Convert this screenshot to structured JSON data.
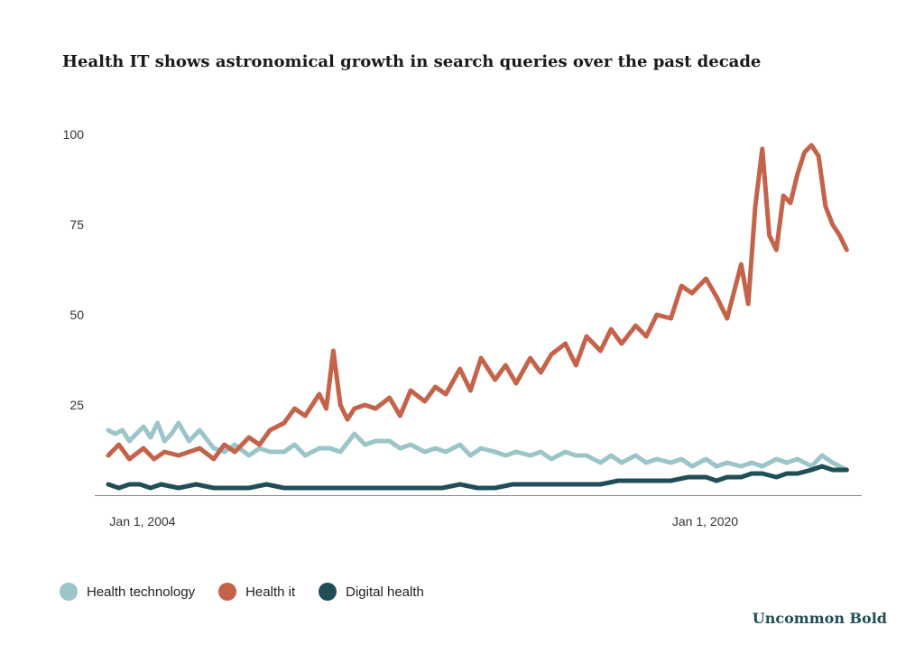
{
  "chart_data": {
    "type": "line",
    "title": "Health IT shows astronomical growth in search queries over the past decade",
    "xlabel": "",
    "ylabel": "",
    "ylim": [
      0,
      100
    ],
    "xlim": [
      2004,
      2025.3
    ],
    "y_ticks": [
      25,
      50,
      75,
      100
    ],
    "x_ticks": [
      {
        "year": 2004,
        "label": "Jan 1, 2004"
      },
      {
        "year": 2020,
        "label": "Jan 1, 2020"
      }
    ],
    "grid": false,
    "legend_position": "bottom-left",
    "series": [
      {
        "name": "Health technology",
        "color": "#9bc5c8",
        "x": [
          2004,
          2004.2,
          2004.4,
          2004.6,
          2004.8,
          2005,
          2005.2,
          2005.4,
          2005.6,
          2005.8,
          2006,
          2006.3,
          2006.6,
          2007,
          2007.3,
          2007.6,
          2008,
          2008.3,
          2008.6,
          2009,
          2009.3,
          2009.6,
          2010,
          2010.3,
          2010.6,
          2011,
          2011.3,
          2011.6,
          2012,
          2012.3,
          2012.6,
          2013,
          2013.3,
          2013.6,
          2014,
          2014.3,
          2014.6,
          2015,
          2015.3,
          2015.6,
          2016,
          2016.3,
          2016.6,
          2017,
          2017.3,
          2017.6,
          2018,
          2018.3,
          2018.6,
          2019,
          2019.3,
          2019.6,
          2020,
          2020.3,
          2020.6,
          2021,
          2021.3,
          2021.6,
          2022,
          2022.3,
          2022.6,
          2023,
          2023.3,
          2023.6,
          2024,
          2024.3,
          2024.6,
          2025
        ],
        "values": [
          18,
          17,
          18,
          15,
          17,
          19,
          16,
          20,
          15,
          17,
          20,
          15,
          18,
          13,
          12,
          14,
          11,
          13,
          12,
          12,
          14,
          11,
          13,
          13,
          12,
          17,
          14,
          15,
          15,
          13,
          14,
          12,
          13,
          12,
          14,
          11,
          13,
          12,
          11,
          12,
          11,
          12,
          10,
          12,
          11,
          11,
          9,
          11,
          9,
          11,
          9,
          10,
          9,
          10,
          8,
          10,
          8,
          9,
          8,
          9,
          8,
          10,
          9,
          10,
          8,
          11,
          9,
          7
        ]
      },
      {
        "name": "Health it",
        "color": "#c4634a",
        "x": [
          2004,
          2004.3,
          2004.6,
          2005,
          2005.3,
          2005.6,
          2006,
          2006.3,
          2006.6,
          2007,
          2007.3,
          2007.6,
          2008,
          2008.3,
          2008.6,
          2009,
          2009.3,
          2009.6,
          2010,
          2010.2,
          2010.4,
          2010.6,
          2010.8,
          2011,
          2011.3,
          2011.6,
          2012,
          2012.3,
          2012.6,
          2013,
          2013.3,
          2013.6,
          2014,
          2014.3,
          2014.6,
          2015,
          2015.3,
          2015.6,
          2016,
          2016.3,
          2016.6,
          2017,
          2017.3,
          2017.6,
          2018,
          2018.3,
          2018.6,
          2019,
          2019.3,
          2019.6,
          2020,
          2020.3,
          2020.6,
          2021,
          2021.3,
          2021.6,
          2022,
          2022.2,
          2022.4,
          2022.6,
          2022.8,
          2023,
          2023.2,
          2023.4,
          2023.6,
          2023.8,
          2024,
          2024.2,
          2024.4,
          2024.6,
          2024.8,
          2025
        ],
        "values": [
          11,
          14,
          10,
          13,
          10,
          12,
          11,
          12,
          13,
          10,
          14,
          12,
          16,
          14,
          18,
          20,
          24,
          22,
          28,
          24,
          40,
          25,
          21,
          24,
          25,
          24,
          27,
          22,
          29,
          26,
          30,
          28,
          35,
          29,
          38,
          32,
          36,
          31,
          38,
          34,
          39,
          42,
          36,
          44,
          40,
          46,
          42,
          47,
          44,
          50,
          49,
          58,
          56,
          60,
          55,
          49,
          64,
          53,
          80,
          96,
          72,
          68,
          83,
          81,
          89,
          95,
          97,
          94,
          80,
          75,
          72,
          68
        ]
      },
      {
        "name": "Digital health",
        "color": "#1f4e57",
        "x": [
          2004,
          2004.3,
          2004.6,
          2004.9,
          2005.2,
          2005.5,
          2006,
          2006.5,
          2007,
          2007.5,
          2008,
          2008.5,
          2009,
          2009.5,
          2010,
          2010.5,
          2011,
          2011.5,
          2012,
          2012.5,
          2013,
          2013.5,
          2014,
          2014.5,
          2015,
          2015.5,
          2016,
          2016.5,
          2017,
          2017.5,
          2018,
          2018.5,
          2019,
          2019.5,
          2020,
          2020.5,
          2021,
          2021.3,
          2021.6,
          2022,
          2022.3,
          2022.6,
          2023,
          2023.3,
          2023.6,
          2024,
          2024.3,
          2024.6,
          2025
        ],
        "values": [
          3,
          2,
          3,
          3,
          2,
          3,
          2,
          3,
          2,
          2,
          2,
          3,
          2,
          2,
          2,
          2,
          2,
          2,
          2,
          2,
          2,
          2,
          3,
          2,
          2,
          3,
          3,
          3,
          3,
          3,
          3,
          4,
          4,
          4,
          4,
          5,
          5,
          4,
          5,
          5,
          6,
          6,
          5,
          6,
          6,
          7,
          8,
          7,
          7
        ]
      }
    ]
  },
  "footer": {
    "brand": "Uncommon Bold"
  }
}
